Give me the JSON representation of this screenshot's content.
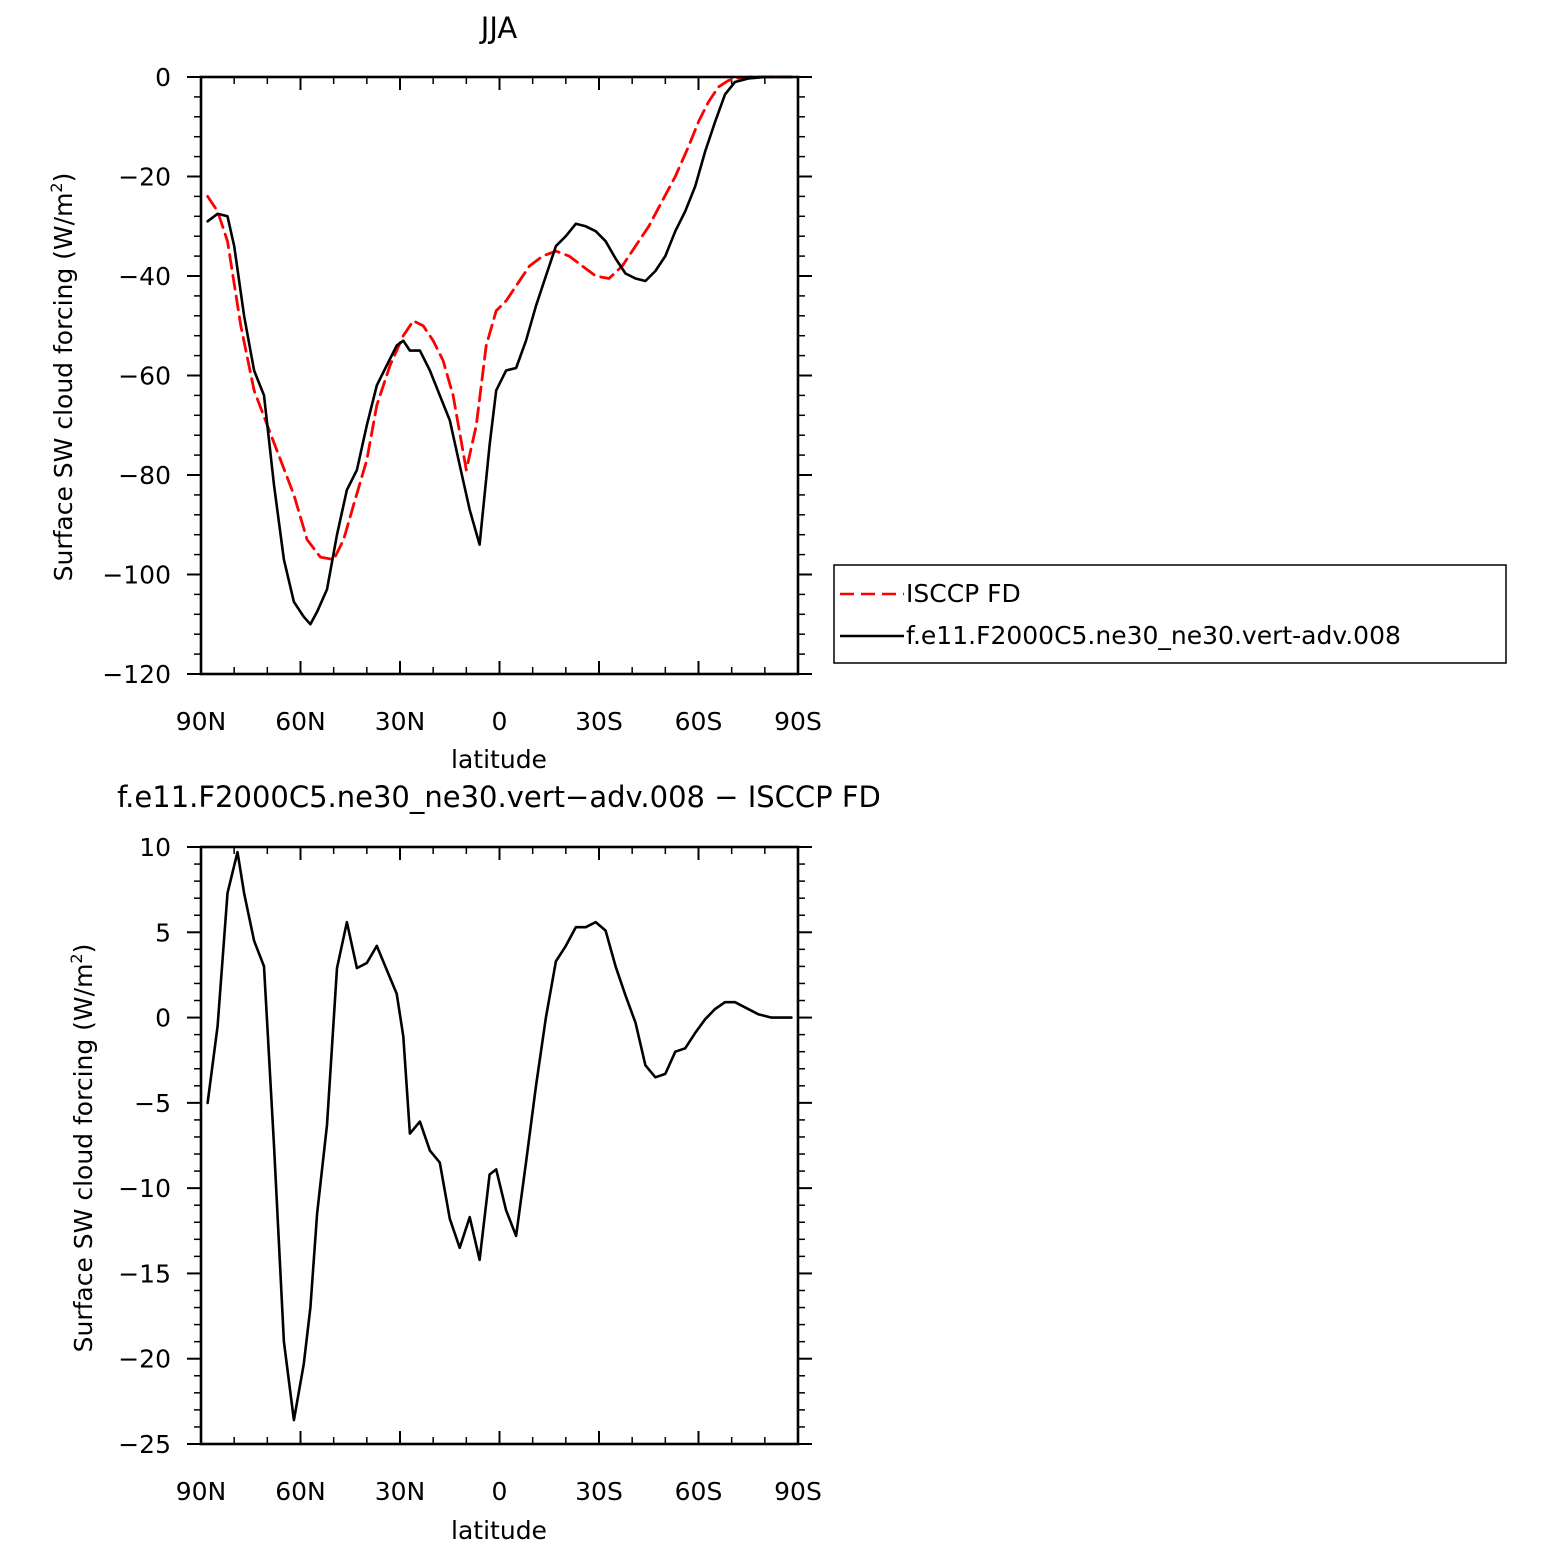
{
  "chart_data": [
    {
      "type": "line",
      "title": "JJA",
      "xlabel": "latitude",
      "ylabel": "Surface SW cloud forcing (W/m",
      "ylabel_sup": "2",
      "ylabel_close": ")",
      "xlim": [
        90,
        -90
      ],
      "ylim": [
        -120,
        0
      ],
      "xticks": [
        90,
        60,
        30,
        0,
        -30,
        -60,
        -90
      ],
      "xtick_labels": [
        "90N",
        "60N",
        "30N",
        "0",
        "30S",
        "60S",
        "90S"
      ],
      "yticks": [
        0,
        -20,
        -40,
        -60,
        -80,
        -100,
        -120
      ],
      "ytick_labels": [
        "0",
        "−20",
        "−40",
        "−60",
        "−80",
        "−100",
        "−120"
      ],
      "grid": false,
      "legend": "right",
      "series": [
        {
          "name": "ISCCP FD",
          "color": "#ff0000",
          "dash": "dashed",
          "x": [
            88,
            85,
            82,
            78,
            74,
            70,
            66,
            62,
            58,
            54,
            50,
            47,
            44,
            40,
            37,
            33,
            29,
            26,
            23,
            20,
            17,
            14,
            10,
            7,
            4,
            1,
            -2,
            -5,
            -9,
            -13,
            -17,
            -21,
            -25,
            -29,
            -33,
            -37,
            -41,
            -45,
            -49,
            -53,
            -57,
            -60,
            -63,
            -66,
            -69,
            -72,
            -76,
            -80,
            -85,
            -88
          ],
          "y": [
            -24,
            -27,
            -33,
            -50,
            -63,
            -70,
            -77,
            -84,
            -93,
            -96.5,
            -97,
            -93,
            -86,
            -77,
            -66,
            -58,
            -52,
            -49,
            -50,
            -53,
            -57,
            -64,
            -79,
            -70,
            -54,
            -47,
            -45,
            -42,
            -38,
            -36,
            -35,
            -36,
            -38,
            -40,
            -40.5,
            -38,
            -34,
            -30,
            -25,
            -20,
            -14,
            -9,
            -5,
            -2,
            -0.7,
            -0.2,
            0,
            0,
            0,
            0
          ]
        },
        {
          "name": "f.e11.F2000C5.ne30_ne30.vert-adv.008",
          "color": "#000000",
          "dash": "solid",
          "x": [
            88,
            85,
            82,
            80,
            77,
            74,
            71,
            68,
            65,
            62,
            59,
            57,
            55,
            52,
            49,
            46,
            43,
            40,
            37,
            34,
            31,
            29,
            27,
            24,
            21,
            18,
            15,
            12,
            9,
            6,
            3,
            1,
            -2,
            -5,
            -8,
            -11,
            -14,
            -17,
            -20,
            -23,
            -26,
            -29,
            -32,
            -35,
            -38,
            -41,
            -44,
            -47,
            -50,
            -53,
            -56,
            -59,
            -62,
            -65,
            -68,
            -71,
            -75,
            -80,
            -85,
            -88
          ],
          "y": [
            -29,
            -27.5,
            -28,
            -34,
            -48,
            -59,
            -64,
            -82,
            -97,
            -105.5,
            -108.5,
            -110,
            -107.5,
            -103,
            -92,
            -83,
            -79,
            -70,
            -62,
            -58,
            -54,
            -53,
            -55,
            -55,
            -59,
            -64,
            -69,
            -78,
            -87,
            -94,
            -74,
            -63,
            -59,
            -58.5,
            -53,
            -46,
            -40,
            -34,
            -32,
            -29.5,
            -30,
            -31,
            -33,
            -36.5,
            -39.5,
            -40.5,
            -41,
            -39,
            -36,
            -31,
            -27,
            -22,
            -15,
            -9,
            -3.5,
            -1,
            -0.3,
            0,
            0,
            0
          ]
        }
      ]
    },
    {
      "type": "line",
      "title": "f.e11.F2000C5.ne30_ne30.vert−adv.008 − ISCCP FD",
      "xlabel": "latitude",
      "ylabel": "Surface SW cloud forcing (W/m",
      "ylabel_sup": "2",
      "ylabel_close": ")",
      "xlim": [
        90,
        -90
      ],
      "ylim": [
        -25,
        10
      ],
      "xticks": [
        90,
        60,
        30,
        0,
        -30,
        -60,
        -90
      ],
      "xtick_labels": [
        "90N",
        "60N",
        "30N",
        "0",
        "30S",
        "60S",
        "90S"
      ],
      "yticks": [
        10,
        5,
        0,
        -5,
        -10,
        -15,
        -20,
        -25
      ],
      "ytick_labels": [
        "10",
        "5",
        "0",
        "−5",
        "−10",
        "−15",
        "−20",
        "−25"
      ],
      "grid": false,
      "series": [
        {
          "color": "#000000",
          "dash": "solid",
          "x": [
            88,
            85,
            82,
            79,
            77,
            74,
            71,
            68,
            65,
            62,
            59,
            57,
            55,
            52,
            49,
            46,
            43,
            40,
            37,
            34,
            31,
            29,
            27,
            24,
            21,
            18,
            15,
            12,
            9,
            6,
            3,
            1,
            -2,
            -5,
            -8,
            -11,
            -14,
            -17,
            -20,
            -23,
            -26,
            -29,
            -32,
            -35,
            -38,
            -41,
            -44,
            -47,
            -50,
            -53,
            -56,
            -59,
            -62,
            -65,
            -68,
            -71,
            -74,
            -78,
            -82,
            -88
          ],
          "y": [
            -5,
            -0.5,
            7.3,
            9.7,
            7.3,
            4.5,
            3,
            -7.5,
            -19,
            -23.6,
            -20.3,
            -17,
            -11.5,
            -6.3,
            2.9,
            5.6,
            2.9,
            3.2,
            4.2,
            2.8,
            1.4,
            -1.1,
            -6.8,
            -6.1,
            -7.8,
            -8.5,
            -11.8,
            -13.5,
            -11.7,
            -14.2,
            -9.2,
            -8.9,
            -11.3,
            -12.8,
            -8.5,
            -4,
            0,
            3.3,
            4.2,
            5.3,
            5.3,
            5.6,
            5.1,
            3,
            1.3,
            -0.3,
            -2.8,
            -3.5,
            -3.3,
            -2,
            -1.8,
            -0.9,
            -0.1,
            0.5,
            0.9,
            0.9,
            0.6,
            0.2,
            0,
            0
          ]
        }
      ]
    }
  ]
}
